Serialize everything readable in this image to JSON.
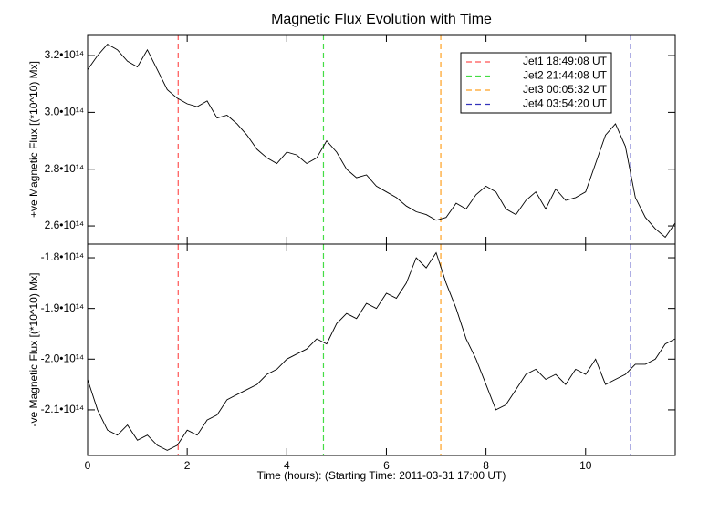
{
  "chart_data": [
    {
      "type": "line",
      "title": "Magnetic Flux Evolution with Time",
      "ylabel": "+ve Magnetic Flux [(*10^10) Mx]",
      "xlim": [
        0,
        11.8
      ],
      "ylim": [
        253600000000000.0,
        327400000000000.0
      ],
      "yticks": [
        {
          "value": 260000000000000.0,
          "label": "2.6•10¹⁴"
        },
        {
          "value": 280000000000000.0,
          "label": "2.8•10¹⁴"
        },
        {
          "value": 300000000000000.0,
          "label": "3.0•10¹⁴"
        },
        {
          "value": 320000000000000.0,
          "label": "3.2•10¹⁴"
        }
      ],
      "color": "#000000",
      "x": [
        0,
        0.2,
        0.4,
        0.6,
        0.8,
        1.0,
        1.2,
        1.4,
        1.6,
        1.8,
        2.0,
        2.2,
        2.4,
        2.6,
        2.8,
        3.0,
        3.2,
        3.4,
        3.6,
        3.8,
        4.0,
        4.2,
        4.4,
        4.6,
        4.8,
        5.0,
        5.2,
        5.4,
        5.6,
        5.8,
        6.0,
        6.2,
        6.4,
        6.6,
        6.8,
        7.0,
        7.2,
        7.4,
        7.6,
        7.8,
        8.0,
        8.2,
        8.4,
        8.6,
        8.8,
        9.0,
        9.2,
        9.4,
        9.6,
        9.8,
        10.0,
        10.2,
        10.4,
        10.6,
        10.8,
        11.0,
        11.2,
        11.4,
        11.6,
        11.8
      ],
      "values": [
        315000000000000.0,
        320000000000000.0,
        324000000000000.0,
        322000000000000.0,
        318000000000000.0,
        316000000000000.0,
        322000000000000.0,
        315000000000000.0,
        308000000000000.0,
        305000000000000.0,
        303000000000000.0,
        302000000000000.0,
        304000000000000.0,
        298000000000000.0,
        299000000000000.0,
        296000000000000.0,
        292000000000000.0,
        287000000000000.0,
        284000000000000.0,
        282000000000000.0,
        286000000000000.0,
        285000000000000.0,
        282000000000000.0,
        284000000000000.0,
        290000000000000.0,
        286000000000000.0,
        280000000000000.0,
        277000000000000.0,
        278000000000000.0,
        274000000000000.0,
        272000000000000.0,
        270000000000000.0,
        267000000000000.0,
        265000000000000.0,
        264000000000000.0,
        262000000000000.0,
        263000000000000.0,
        268000000000000.0,
        266000000000000.0,
        271000000000000.0,
        274000000000000.0,
        272000000000000.0,
        266000000000000.0,
        264000000000000.0,
        269000000000000.0,
        272000000000000.0,
        266000000000000.0,
        273000000000000.0,
        269000000000000.0,
        270000000000000.0,
        272000000000000.0,
        282000000000000.0,
        292000000000000.0,
        296000000000000.0,
        288000000000000.0,
        270000000000000.0,
        263000000000000.0,
        259000000000000.0,
        256000000000000.0,
        261000000000000.0
      ],
      "vlines": [
        {
          "x": 1.819,
          "label": "Jet1 18:49:08 UT",
          "color": "#ff5555"
        },
        {
          "x": 4.736,
          "label": "Jet2 21:44:08 UT",
          "color": "#44dd44"
        },
        {
          "x": 7.092,
          "label": "Jet3 00:05:32 UT",
          "color": "#ffa020"
        },
        {
          "x": 10.906,
          "label": "Jet4 03:54:20 UT",
          "color": "#3333bb"
        }
      ],
      "legend": "upper right"
    },
    {
      "type": "line",
      "ylabel": "-ve Magnetic Flux [(*10^10) Mx]",
      "xlabel": "Time (hours): (Starting Time: 2011-03-31 17:00 UT)",
      "xlim": [
        0,
        11.8
      ],
      "xticks": [
        0,
        2,
        4,
        6,
        8,
        10
      ],
      "ylim": [
        -219000000000000.0,
        -177300000000000.0
      ],
      "yticks": [
        {
          "value": -210000000000000.0,
          "label": "-2.1•10¹⁴"
        },
        {
          "value": -200000000000000.0,
          "label": "-2.0•10¹⁴"
        },
        {
          "value": -190000000000000.0,
          "label": "-1.9•10¹⁴"
        },
        {
          "value": -180000000000000.0,
          "label": "-1.8•10¹⁴"
        }
      ],
      "color": "#000000",
      "x": [
        0,
        0.2,
        0.4,
        0.6,
        0.8,
        1.0,
        1.2,
        1.4,
        1.6,
        1.8,
        2.0,
        2.2,
        2.4,
        2.6,
        2.8,
        3.0,
        3.2,
        3.4,
        3.6,
        3.8,
        4.0,
        4.2,
        4.4,
        4.6,
        4.8,
        5.0,
        5.2,
        5.4,
        5.6,
        5.8,
        6.0,
        6.2,
        6.4,
        6.6,
        6.8,
        7.0,
        7.2,
        7.4,
        7.6,
        7.8,
        8.0,
        8.2,
        8.4,
        8.6,
        8.8,
        9.0,
        9.2,
        9.4,
        9.6,
        9.8,
        10.0,
        10.2,
        10.4,
        10.6,
        10.8,
        11.0,
        11.2,
        11.4,
        11.6,
        11.8
      ],
      "values": [
        -204000000000000.0,
        -210000000000000.0,
        -214000000000000.0,
        -215000000000000.0,
        -213000000000000.0,
        -216000000000000.0,
        -215000000000000.0,
        -217000000000000.0,
        -218000000000000.0,
        -217000000000000.0,
        -214000000000000.0,
        -215000000000000.0,
        -212000000000000.0,
        -211000000000000.0,
        -208000000000000.0,
        -207000000000000.0,
        -206000000000000.0,
        -205000000000000.0,
        -203000000000000.0,
        -202000000000000.0,
        -200000000000000.0,
        -199000000000000.0,
        -198000000000000.0,
        -196000000000000.0,
        -197000000000000.0,
        -193000000000000.0,
        -191000000000000.0,
        -192000000000000.0,
        -189000000000000.0,
        -190000000000000.0,
        -187000000000000.0,
        -188000000000000.0,
        -185000000000000.0,
        -180000000000000.0,
        -182000000000000.0,
        -179000000000000.0,
        -185000000000000.0,
        -190000000000000.0,
        -196000000000000.0,
        -200000000000000.0,
        -205000000000000.0,
        -210000000000000.0,
        -209000000000000.0,
        -206000000000000.0,
        -203000000000000.0,
        -202000000000000.0,
        -204000000000000.0,
        -203000000000000.0,
        -205000000000000.0,
        -202000000000000.0,
        -203000000000000.0,
        -200000000000000.0,
        -205000000000000.0,
        -204000000000000.0,
        -203000000000000.0,
        -201000000000000.0,
        -201000000000000.0,
        -200000000000000.0,
        -197000000000000.0,
        -196000000000000.0
      ]
    }
  ]
}
